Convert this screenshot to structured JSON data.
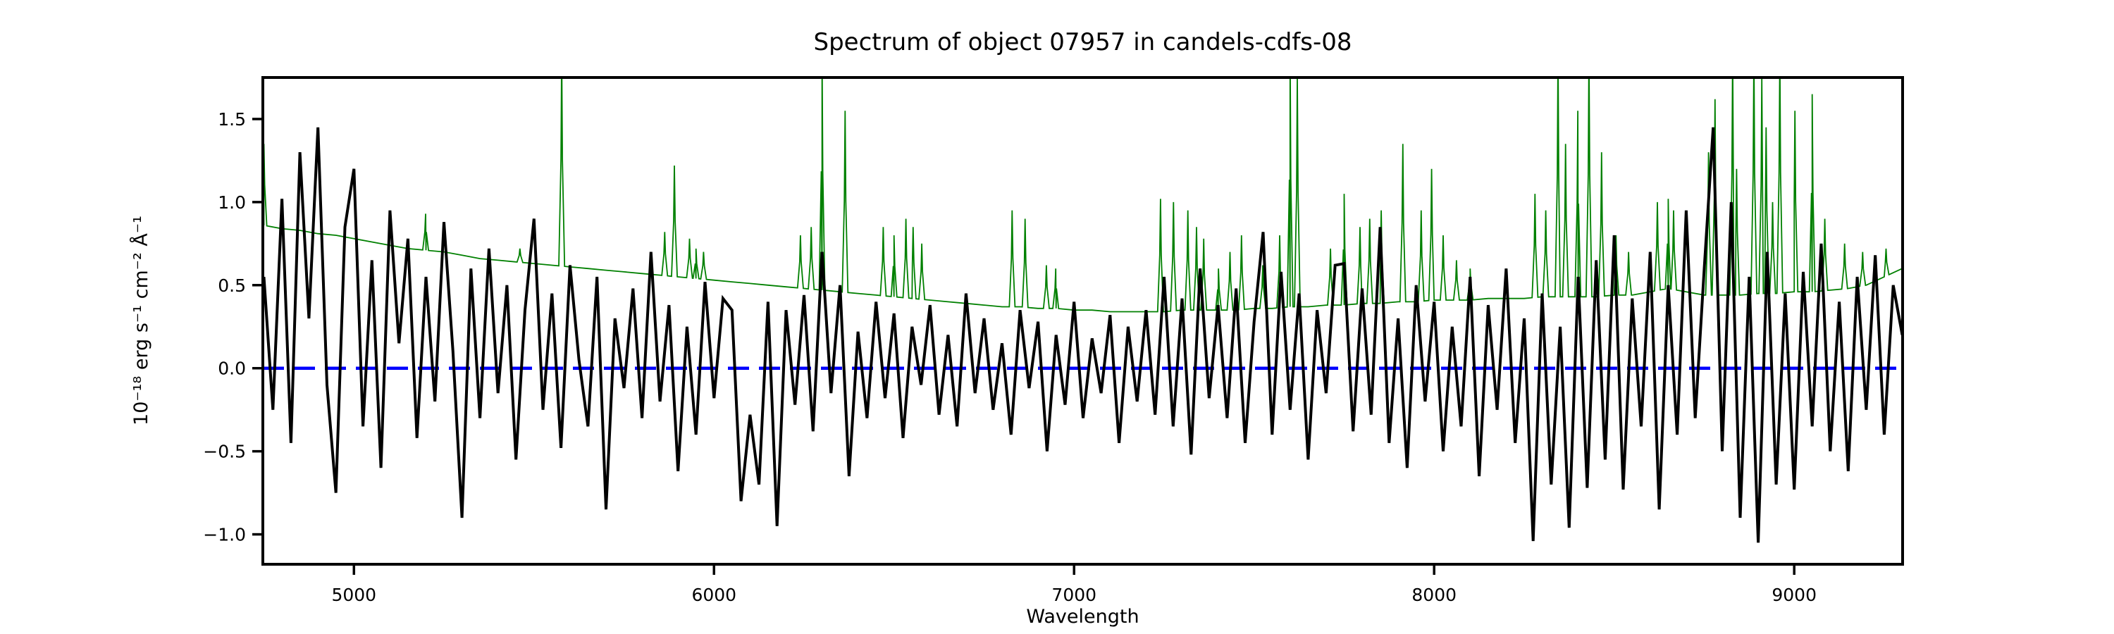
{
  "figure": {
    "background": "#ffffff",
    "plot_background": "#ffffff",
    "spine_color": "#000000",
    "tick_color": "#000000",
    "text_color": "#000000"
  },
  "chart_data": {
    "type": "line",
    "title": "Spectrum of object 07957 in candels-cdfs-08",
    "xlabel": "Wavelength",
    "ylabel": "10⁻¹⁸ erg s⁻¹ cm⁻² Å⁻¹",
    "xlim": [
      4747,
      9301
    ],
    "ylim": [
      -1.18,
      1.75
    ],
    "grid": false,
    "legend": "none",
    "xticks": [
      {
        "v": 5000,
        "label": "5000"
      },
      {
        "v": 6000,
        "label": "6000"
      },
      {
        "v": 7000,
        "label": "7000"
      },
      {
        "v": 8000,
        "label": "8000"
      },
      {
        "v": 9000,
        "label": "9000"
      }
    ],
    "yticks": [
      {
        "v": -1.0,
        "label": "−1.0"
      },
      {
        "v": -0.5,
        "label": "−0.5"
      },
      {
        "v": 0.0,
        "label": "0.0"
      },
      {
        "v": 0.5,
        "label": "0.5"
      },
      {
        "v": 1.0,
        "label": "1.0"
      },
      {
        "v": 1.5,
        "label": "1.5"
      }
    ],
    "series": [
      {
        "name": "observed-flux",
        "color": "#000000",
        "linewidth": 4,
        "style": "solid",
        "x_start": 4750,
        "x_step": 25,
        "values": [
          0.55,
          -0.25,
          1.02,
          -0.45,
          1.3,
          0.3,
          1.45,
          -0.1,
          -0.75,
          0.85,
          1.2,
          -0.35,
          0.65,
          -0.6,
          0.95,
          0.15,
          0.78,
          -0.42,
          0.55,
          -0.2,
          0.88,
          0.1,
          -0.9,
          0.6,
          -0.3,
          0.72,
          -0.15,
          0.5,
          -0.55,
          0.35,
          0.9,
          -0.25,
          0.45,
          -0.48,
          0.62,
          0.05,
          -0.35,
          0.55,
          -0.85,
          0.3,
          -0.12,
          0.48,
          -0.3,
          0.7,
          -0.2,
          0.38,
          -0.62,
          0.25,
          -0.4,
          0.52,
          -0.18,
          0.42,
          0.35,
          -0.8,
          -0.28,
          -0.7,
          0.4,
          -0.95,
          0.35,
          -0.22,
          0.44,
          -0.38,
          0.7,
          -0.15,
          0.5,
          -0.65,
          0.22,
          -0.3,
          0.4,
          -0.18,
          0.33,
          -0.42,
          0.25,
          -0.1,
          0.38,
          -0.28,
          0.2,
          -0.35,
          0.45,
          -0.15,
          0.3,
          -0.25,
          0.15,
          -0.4,
          0.35,
          -0.12,
          0.28,
          -0.5,
          0.2,
          -0.22,
          0.4,
          -0.3,
          0.18,
          -0.15,
          0.32,
          -0.45,
          0.25,
          -0.2,
          0.35,
          -0.28,
          0.55,
          -0.35,
          0.42,
          -0.52,
          0.6,
          -0.18,
          0.38,
          -0.3,
          0.48,
          -0.45,
          0.28,
          0.82,
          -0.4,
          0.58,
          -0.25,
          0.45,
          -0.55,
          0.35,
          -0.15,
          0.62,
          0.63,
          -0.38,
          0.48,
          -0.28,
          0.85,
          -0.45,
          0.3,
          -0.6,
          0.5,
          -0.2,
          0.4,
          -0.5,
          0.25,
          -0.35,
          0.55,
          -0.65,
          0.38,
          -0.25,
          0.6,
          -0.45,
          0.3,
          -1.04,
          0.45,
          -0.7,
          0.25,
          -0.96,
          0.55,
          -0.72,
          0.65,
          -0.55,
          0.8,
          -0.73,
          0.42,
          -0.35,
          0.7,
          -0.85,
          0.5,
          -0.4,
          0.95,
          -0.3,
          0.6,
          1.45,
          -0.5,
          1.0,
          -0.9,
          0.55,
          -1.05,
          0.7,
          -0.7,
          0.45,
          -0.73,
          0.58,
          -0.35,
          0.75,
          -0.5,
          0.4,
          -0.62,
          0.55,
          -0.25,
          0.68,
          -0.4,
          0.5,
          0.2
        ]
      },
      {
        "name": "sky-noise-spectrum",
        "color": "#008000",
        "linewidth": 1.8,
        "style": "solid",
        "continuum": {
          "x_start": 4750,
          "x_step": 50,
          "values": [
            0.86,
            0.84,
            0.83,
            0.81,
            0.8,
            0.78,
            0.76,
            0.74,
            0.72,
            0.71,
            0.7,
            0.68,
            0.66,
            0.65,
            0.64,
            0.63,
            0.62,
            0.61,
            0.6,
            0.59,
            0.58,
            0.57,
            0.56,
            0.55,
            0.54,
            0.53,
            0.52,
            0.51,
            0.5,
            0.49,
            0.48,
            0.47,
            0.46,
            0.45,
            0.44,
            0.43,
            0.42,
            0.41,
            0.4,
            0.39,
            0.38,
            0.37,
            0.37,
            0.36,
            0.36,
            0.35,
            0.35,
            0.34,
            0.34,
            0.34,
            0.34,
            0.35,
            0.35,
            0.35,
            0.35,
            0.36,
            0.36,
            0.37,
            0.37,
            0.38,
            0.38,
            0.39,
            0.39,
            0.4,
            0.4,
            0.41,
            0.41,
            0.41,
            0.42,
            0.42,
            0.42,
            0.43,
            0.43,
            0.43,
            0.43,
            0.44,
            0.44,
            0.46,
            0.48,
            0.46,
            0.44,
            0.44,
            0.44,
            0.45,
            0.45,
            0.46,
            0.46,
            0.47,
            0.48,
            0.5,
            0.55,
            0.6
          ]
        },
        "spikes": [
          [
            4750,
            1.35
          ],
          [
            5199,
            0.93
          ],
          [
            5461,
            0.72
          ],
          [
            5577,
            1.9
          ],
          [
            5863,
            0.82
          ],
          [
            5890,
            1.22
          ],
          [
            5932,
            0.78
          ],
          [
            5950,
            0.72
          ],
          [
            5971,
            0.7
          ],
          [
            6240,
            0.8
          ],
          [
            6270,
            0.85
          ],
          [
            6300,
            1.9
          ],
          [
            6364,
            1.55
          ],
          [
            6470,
            0.85
          ],
          [
            6500,
            0.8
          ],
          [
            6533,
            0.9
          ],
          [
            6553,
            0.85
          ],
          [
            6577,
            0.75
          ],
          [
            6828,
            0.95
          ],
          [
            6864,
            0.9
          ],
          [
            6923,
            0.62
          ],
          [
            6949,
            0.6
          ],
          [
            7240,
            1.02
          ],
          [
            7276,
            1.0
          ],
          [
            7316,
            0.95
          ],
          [
            7340,
            0.85
          ],
          [
            7360,
            0.78
          ],
          [
            7401,
            0.6
          ],
          [
            7433,
            0.7
          ],
          [
            7465,
            0.8
          ],
          [
            7524,
            0.62
          ],
          [
            7571,
            0.8
          ],
          [
            7600,
            1.9
          ],
          [
            7620,
            1.75
          ],
          [
            7712,
            0.72
          ],
          [
            7750,
            1.05
          ],
          [
            7794,
            0.85
          ],
          [
            7821,
            0.9
          ],
          [
            7853,
            0.95
          ],
          [
            7913,
            1.35
          ],
          [
            7964,
            0.95
          ],
          [
            7993,
            1.2
          ],
          [
            8025,
            0.8
          ],
          [
            8062,
            0.65
          ],
          [
            8100,
            0.6
          ],
          [
            8280,
            1.05
          ],
          [
            8310,
            0.95
          ],
          [
            8344,
            1.9
          ],
          [
            8365,
            1.35
          ],
          [
            8399,
            1.55
          ],
          [
            8430,
            1.9
          ],
          [
            8465,
            1.3
          ],
          [
            8505,
            0.8
          ],
          [
            8540,
            0.7
          ],
          [
            8620,
            1.0
          ],
          [
            8650,
            1.02
          ],
          [
            8665,
            0.95
          ],
          [
            8762,
            1.3
          ],
          [
            8780,
            1.62
          ],
          [
            8829,
            1.9
          ],
          [
            8840,
            1.2
          ],
          [
            8888,
            1.9
          ],
          [
            8910,
            1.75
          ],
          [
            8922,
            1.45
          ],
          [
            8940,
            1.0
          ],
          [
            8960,
            1.9
          ],
          [
            9002,
            1.55
          ],
          [
            9050,
            1.65
          ],
          [
            9085,
            0.9
          ],
          [
            9140,
            0.75
          ],
          [
            9190,
            0.7
          ],
          [
            9255,
            0.72
          ],
          [
            9310,
            0.65
          ]
        ]
      },
      {
        "name": "zero-line",
        "color": "#0000ff",
        "linewidth": 4.5,
        "style": "dashed",
        "y": 0.0
      }
    ]
  }
}
